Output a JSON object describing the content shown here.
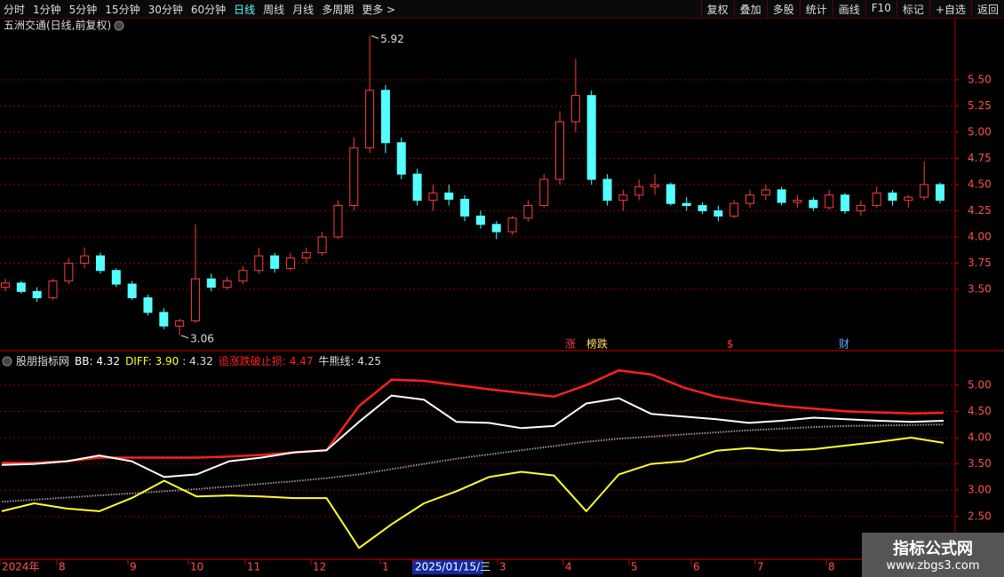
{
  "toolbar": {
    "left": [
      "分时",
      "1分钟",
      "5分钟",
      "15分钟",
      "30分钟",
      "60分钟",
      "日线",
      "周线",
      "月线",
      "多周期",
      "更多 >"
    ],
    "right": [
      "复权",
      "叠加",
      "多股",
      "统计",
      "画线",
      "F10",
      "标记",
      "+自选",
      "返回"
    ]
  },
  "chart_data": [
    {
      "type": "candlestick",
      "title": "五洲交通(日线,前复权)",
      "up_color": "#ff3c3c",
      "down_color": "#54ffff",
      "open": [
        3.52,
        3.56,
        3.48,
        3.42,
        3.58,
        3.75,
        3.82,
        3.68,
        3.55,
        3.42,
        3.28,
        3.15,
        3.2,
        3.6,
        3.52,
        3.58,
        3.68,
        3.82,
        3.7,
        3.8,
        3.85,
        4.0,
        4.3,
        4.85,
        5.4,
        4.9,
        4.6,
        4.35,
        4.42,
        4.36,
        4.2,
        4.12,
        4.05,
        4.18,
        4.3,
        4.55,
        5.1,
        5.35,
        4.55,
        4.35,
        4.4,
        4.48,
        4.5,
        4.32,
        4.3,
        4.25,
        4.2,
        4.32,
        4.4,
        4.45,
        4.33,
        4.35,
        4.28,
        4.4,
        4.25,
        4.3,
        4.42,
        4.35,
        4.38,
        4.5
      ],
      "high": [
        3.6,
        3.58,
        3.52,
        3.6,
        3.8,
        3.9,
        3.85,
        3.7,
        3.58,
        3.45,
        3.32,
        3.22,
        4.12,
        3.65,
        3.62,
        3.72,
        3.9,
        3.85,
        3.85,
        3.9,
        4.05,
        4.35,
        4.95,
        5.92,
        5.45,
        4.95,
        4.65,
        4.5,
        4.5,
        4.4,
        4.25,
        4.15,
        4.2,
        4.35,
        4.6,
        5.2,
        5.7,
        5.4,
        4.6,
        4.45,
        4.55,
        4.6,
        4.52,
        4.38,
        4.33,
        4.3,
        4.35,
        4.45,
        4.5,
        4.48,
        4.4,
        4.38,
        4.45,
        4.42,
        4.35,
        4.48,
        4.45,
        4.4,
        4.72,
        4.52
      ],
      "low": [
        3.48,
        3.46,
        3.38,
        3.4,
        3.55,
        3.7,
        3.65,
        3.52,
        3.4,
        3.25,
        3.12,
        3.06,
        3.18,
        3.48,
        3.5,
        3.55,
        3.65,
        3.66,
        3.68,
        3.75,
        3.82,
        3.98,
        4.25,
        4.8,
        4.8,
        4.55,
        4.3,
        4.25,
        4.3,
        4.15,
        4.08,
        3.98,
        4.02,
        4.15,
        4.28,
        4.5,
        5.0,
        4.5,
        4.3,
        4.25,
        4.35,
        4.4,
        4.3,
        4.25,
        4.22,
        4.15,
        4.18,
        4.28,
        4.35,
        4.3,
        4.28,
        4.25,
        4.26,
        4.22,
        4.2,
        4.28,
        4.3,
        4.28,
        4.35,
        4.32
      ],
      "close": [
        3.56,
        3.48,
        3.42,
        3.58,
        3.75,
        3.82,
        3.68,
        3.55,
        3.42,
        3.28,
        3.15,
        3.2,
        3.6,
        3.52,
        3.58,
        3.68,
        3.82,
        3.7,
        3.8,
        3.85,
        4.0,
        4.3,
        4.85,
        5.4,
        4.9,
        4.6,
        4.35,
        4.42,
        4.36,
        4.2,
        4.12,
        4.05,
        4.18,
        4.3,
        4.55,
        5.1,
        5.35,
        4.55,
        4.35,
        4.4,
        4.48,
        4.5,
        4.32,
        4.3,
        4.25,
        4.2,
        4.32,
        4.4,
        4.45,
        4.33,
        4.35,
        4.28,
        4.4,
        4.25,
        4.3,
        4.42,
        4.35,
        4.38,
        4.5,
        4.35
      ],
      "ylim": [
        2.915,
        5.94
      ],
      "yticks": [
        {
          "value": 3.5,
          "label": "3.50"
        },
        {
          "value": 3.75,
          "label": "3.75"
        },
        {
          "value": 4,
          "label": "4.00"
        },
        {
          "value": 4.25,
          "label": "4.25"
        },
        {
          "value": 4.5,
          "label": "4.50"
        },
        {
          "value": 4.75,
          "label": "4.75"
        },
        {
          "value": 5,
          "label": "5.00"
        },
        {
          "value": 5.25,
          "label": "5.25"
        },
        {
          "value": 5.5,
          "label": "5.50"
        }
      ],
      "grid": true,
      "high_label": 5.92,
      "low_label": 3.06,
      "signals": [
        {
          "label": "涨",
          "color": "#ff4040"
        },
        {
          "label": "榜跌",
          "color": "#ffe060"
        },
        {
          "label": "$",
          "color": "#ff4040"
        },
        {
          "label": "财",
          "color": "#60b0ff"
        }
      ]
    },
    {
      "type": "line",
      "title": "股朋指标网",
      "legend_extra": ": 4.32",
      "series": [
        {
          "name": "追涨跌破止损: 4.47",
          "color": "#ff2020",
          "width": 2.5,
          "values": [
            3.52,
            3.52,
            3.55,
            3.62,
            3.62,
            3.62,
            3.62,
            3.64,
            3.67,
            3.72,
            3.76,
            4.6,
            5.1,
            5.08,
            5.0,
            4.92,
            4.85,
            4.78,
            5.0,
            5.28,
            5.2,
            4.95,
            4.78,
            4.68,
            4.6,
            4.55,
            4.5,
            4.48,
            4.46,
            4.47
          ]
        },
        {
          "name": "BB: 4.32",
          "color": "#ffffff",
          "width": 2,
          "values": [
            3.48,
            3.5,
            3.55,
            3.66,
            3.55,
            3.25,
            3.3,
            3.55,
            3.62,
            3.72,
            3.76,
            4.3,
            4.8,
            4.72,
            4.3,
            4.28,
            4.18,
            4.22,
            4.65,
            4.75,
            4.45,
            4.4,
            4.35,
            4.28,
            4.32,
            4.38,
            4.35,
            4.32,
            4.3,
            4.32
          ]
        },
        {
          "name": "牛熊线: 4.25",
          "color": "#9a9a9a",
          "width": 2,
          "dashed": true,
          "values": [
            2.78,
            2.82,
            2.86,
            2.9,
            2.94,
            2.98,
            3.02,
            3.07,
            3.12,
            3.17,
            3.23,
            3.3,
            3.4,
            3.5,
            3.6,
            3.68,
            3.76,
            3.84,
            3.92,
            3.98,
            4.02,
            4.06,
            4.1,
            4.14,
            4.17,
            4.2,
            4.22,
            4.23,
            4.24,
            4.25
          ]
        },
        {
          "name": "DIFF: 3.90",
          "color": "#ffff30",
          "width": 2,
          "values": [
            2.6,
            2.75,
            2.65,
            2.6,
            2.85,
            3.18,
            2.88,
            2.9,
            2.88,
            2.85,
            2.85,
            1.9,
            2.35,
            2.75,
            2.98,
            3.25,
            3.35,
            3.28,
            2.6,
            3.3,
            3.5,
            3.55,
            3.75,
            3.8,
            3.75,
            3.78,
            3.85,
            3.92,
            4.0,
            3.9
          ]
        }
      ],
      "ylim": [
        1.72,
        5.57
      ],
      "yticks": [
        {
          "value": 2.5,
          "label": "2.50"
        },
        {
          "value": 3,
          "label": "3.00"
        },
        {
          "value": 3.5,
          "label": "3.50"
        },
        {
          "value": 4,
          "label": "4.00"
        },
        {
          "value": 4.5,
          "label": "4.50"
        },
        {
          "value": 5,
          "label": "5.00"
        }
      ],
      "grid": true
    }
  ],
  "x_axis": {
    "labels": [
      "2024年",
      "8",
      "9",
      "10",
      "11",
      "12",
      "1",
      "2025/01/15/三",
      "3",
      "4",
      "5",
      "6",
      "7",
      "8"
    ]
  },
  "watermark": {
    "title": "指标公式网",
    "url": "www.zbgs3.com"
  }
}
